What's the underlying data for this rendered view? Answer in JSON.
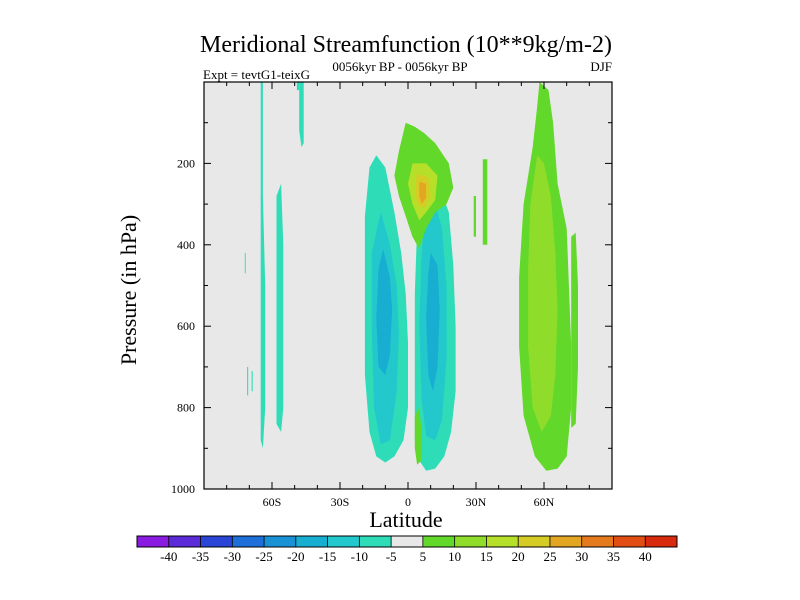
{
  "chart_data": {
    "type": "heatmap",
    "title": "Meridional Streamfunction (10**9kg/m-2)",
    "subtitle": "0056kyr BP - 0056kyr BP",
    "left_annotation": "Expt = tevtG1-teixG",
    "right_annotation": "DJF",
    "xlabel": "Latitude",
    "ylabel": "Pressure (in hPa)",
    "xlim": [
      -90,
      90
    ],
    "ylim": [
      0,
      1000
    ],
    "x_ticks": [
      {
        "value": -60,
        "label": "60S"
      },
      {
        "value": -30,
        "label": "30S"
      },
      {
        "value": 0,
        "label": "0"
      },
      {
        "value": 30,
        "label": "30N"
      },
      {
        "value": 60,
        "label": "60N"
      }
    ],
    "y_ticks": [
      {
        "value": 200,
        "label": "200"
      },
      {
        "value": 400,
        "label": "400"
      },
      {
        "value": 600,
        "label": "600"
      },
      {
        "value": 800,
        "label": "800"
      },
      {
        "value": 1000,
        "label": "1000"
      }
    ],
    "background_color": "#e8e8e8",
    "colorbar": {
      "levels": [
        "-40",
        "-35",
        "-30",
        "-25",
        "-20",
        "-15",
        "-10",
        "-5",
        "5",
        "10",
        "15",
        "20",
        "25",
        "30",
        "35",
        "40"
      ],
      "colors": [
        "#8a1be0",
        "#5a2bd6",
        "#2b46d6",
        "#1f6fd8",
        "#1892d4",
        "#17aed2",
        "#22c8cc",
        "#2fdcb8",
        "#e8e8e8",
        "#62d82a",
        "#8fdd2a",
        "#b6df2a",
        "#d6cc26",
        "#e3a622",
        "#e57a1c",
        "#e04e14",
        "#d82a0c"
      ]
    },
    "regions": [
      {
        "name": "sh-negative-cell-outer",
        "color": "#2fdcb8",
        "points": [
          [
            -14,
            180
          ],
          [
            -10,
            210
          ],
          [
            -6,
            320
          ],
          [
            -3,
            420
          ],
          [
            -1,
            520
          ],
          [
            0,
            640
          ],
          [
            0,
            800
          ],
          [
            -2,
            880
          ],
          [
            -6,
            920
          ],
          [
            -10,
            935
          ],
          [
            -14,
            920
          ],
          [
            -17,
            860
          ],
          [
            -19,
            720
          ],
          [
            -19,
            520
          ],
          [
            -19,
            330
          ],
          [
            -17,
            210
          ]
        ]
      },
      {
        "name": "sh-negative-cell-mid",
        "color": "#22c8cc",
        "points": [
          [
            -12,
            320
          ],
          [
            -8,
            400
          ],
          [
            -5,
            500
          ],
          [
            -4,
            620
          ],
          [
            -5,
            760
          ],
          [
            -8,
            880
          ],
          [
            -12,
            890
          ],
          [
            -15,
            800
          ],
          [
            -16,
            600
          ],
          [
            -16,
            420
          ]
        ]
      },
      {
        "name": "sh-negative-cell-core",
        "color": "#17aed2",
        "points": [
          [
            -11,
            410
          ],
          [
            -8,
            480
          ],
          [
            -7,
            560
          ],
          [
            -8,
            670
          ],
          [
            -10,
            720
          ],
          [
            -13,
            700
          ],
          [
            -14,
            580
          ],
          [
            -13,
            460
          ]
        ]
      },
      {
        "name": "nh-negative-cell-outer",
        "color": "#2fdcb8",
        "points": [
          [
            6,
            250
          ],
          [
            10,
            240
          ],
          [
            14,
            260
          ],
          [
            18,
            320
          ],
          [
            20,
            450
          ],
          [
            21,
            600
          ],
          [
            21,
            760
          ],
          [
            19,
            860
          ],
          [
            16,
            920
          ],
          [
            12,
            950
          ],
          [
            8,
            955
          ],
          [
            5,
            930
          ],
          [
            3,
            880
          ],
          [
            3,
            700
          ],
          [
            3,
            520
          ],
          [
            4,
            360
          ]
        ]
      },
      {
        "name": "nh-negative-cell-mid",
        "color": "#22c8cc",
        "points": [
          [
            8,
            300
          ],
          [
            12,
            300
          ],
          [
            15,
            360
          ],
          [
            17,
            500
          ],
          [
            17,
            680
          ],
          [
            15,
            830
          ],
          [
            12,
            880
          ],
          [
            8,
            870
          ],
          [
            6,
            780
          ],
          [
            5,
            600
          ],
          [
            6,
            420
          ]
        ]
      },
      {
        "name": "nh-negative-cell-core",
        "color": "#17aed2",
        "points": [
          [
            10,
            420
          ],
          [
            13,
            450
          ],
          [
            14,
            560
          ],
          [
            13,
            700
          ],
          [
            11,
            760
          ],
          [
            9,
            720
          ],
          [
            8,
            580
          ],
          [
            9,
            470
          ]
        ]
      },
      {
        "name": "upper-positive-cell",
        "color": "#62d82a",
        "points": [
          [
            -1,
            100
          ],
          [
            3,
            110
          ],
          [
            7,
            125
          ],
          [
            12,
            150
          ],
          [
            18,
            200
          ],
          [
            20,
            260
          ],
          [
            17,
            300
          ],
          [
            12,
            320
          ],
          [
            8,
            360
          ],
          [
            6,
            390
          ],
          [
            5,
            410
          ],
          [
            2,
            380
          ],
          [
            -1,
            330
          ],
          [
            -4,
            280
          ],
          [
            -6,
            230
          ],
          [
            -4,
            170
          ]
        ]
      },
      {
        "name": "upper-positive-mid",
        "color": "#b6df2a",
        "points": [
          [
            2,
            200
          ],
          [
            8,
            200
          ],
          [
            13,
            230
          ],
          [
            12,
            290
          ],
          [
            8,
            320
          ],
          [
            5,
            340
          ],
          [
            2,
            300
          ],
          [
            0,
            250
          ]
        ]
      },
      {
        "name": "upper-positive-core",
        "color": "#d6cc26",
        "points": [
          [
            4,
            225
          ],
          [
            9,
            235
          ],
          [
            10,
            280
          ],
          [
            7,
            310
          ],
          [
            4,
            300
          ],
          [
            3,
            265
          ]
        ]
      },
      {
        "name": "upper-positive-peak",
        "color": "#e3a622",
        "points": [
          [
            5,
            245
          ],
          [
            8,
            250
          ],
          [
            8,
            285
          ],
          [
            6,
            300
          ],
          [
            5,
            280
          ]
        ]
      },
      {
        "name": "nh-sfc-positive-small",
        "color": "#62d82a",
        "points": [
          [
            3,
            820
          ],
          [
            5,
            800
          ],
          [
            6,
            860
          ],
          [
            6,
            930
          ],
          [
            4,
            940
          ],
          [
            3,
            900
          ]
        ]
      },
      {
        "name": "nh-thin-streak-1",
        "color": "#62d82a",
        "points": [
          [
            33,
            190
          ],
          [
            35,
            190
          ],
          [
            35,
            400
          ],
          [
            33,
            400
          ]
        ]
      },
      {
        "name": "nh-thin-streak-2",
        "color": "#62d82a",
        "points": [
          [
            29,
            280
          ],
          [
            30,
            280
          ],
          [
            30,
            380
          ],
          [
            29,
            380
          ]
        ]
      },
      {
        "name": "nh-midlat-positive-outer",
        "color": "#62d82a",
        "points": [
          [
            58,
            0
          ],
          [
            62,
            20
          ],
          [
            64,
            100
          ],
          [
            66,
            250
          ],
          [
            70,
            360
          ],
          [
            71,
            500
          ],
          [
            72,
            650
          ],
          [
            72,
            800
          ],
          [
            70,
            920
          ],
          [
            66,
            950
          ],
          [
            61,
            955
          ],
          [
            56,
            920
          ],
          [
            51,
            820
          ],
          [
            49,
            650
          ],
          [
            49,
            480
          ],
          [
            51,
            300
          ],
          [
            55,
            160
          ],
          [
            57,
            60
          ]
        ]
      },
      {
        "name": "nh-midlat-positive-core",
        "color": "#8fdd2a",
        "points": [
          [
            57,
            180
          ],
          [
            60,
            200
          ],
          [
            63,
            280
          ],
          [
            65,
            420
          ],
          [
            66,
            560
          ],
          [
            65,
            720
          ],
          [
            63,
            820
          ],
          [
            59,
            860
          ],
          [
            55,
            800
          ],
          [
            53,
            650
          ],
          [
            53,
            460
          ],
          [
            54,
            300
          ]
        ]
      },
      {
        "name": "nh-highlat-streak",
        "color": "#62d82a",
        "points": [
          [
            72,
            380
          ],
          [
            74,
            370
          ],
          [
            75,
            500
          ],
          [
            75,
            700
          ],
          [
            74,
            840
          ],
          [
            72,
            850
          ],
          [
            72,
            700
          ]
        ]
      },
      {
        "name": "sh-highlat-streak-a",
        "color": "#2fdcb8",
        "points": [
          [
            -65,
            0
          ],
          [
            -64,
            0
          ],
          [
            -64,
            280
          ],
          [
            -63,
            500
          ],
          [
            -63,
            800
          ],
          [
            -64,
            900
          ],
          [
            -65,
            880
          ],
          [
            -65,
            600
          ],
          [
            -65,
            300
          ]
        ]
      },
      {
        "name": "sh-highlat-streak-b",
        "color": "#2fdcb8",
        "points": [
          [
            -58,
            280
          ],
          [
            -56,
            250
          ],
          [
            -55,
            400
          ],
          [
            -55,
            600
          ],
          [
            -55,
            800
          ],
          [
            -56,
            860
          ],
          [
            -58,
            840
          ],
          [
            -58,
            600
          ],
          [
            -58,
            420
          ]
        ]
      },
      {
        "name": "sh-highlat-blob-c",
        "color": "#2fdcb8",
        "points": [
          [
            -48,
            0
          ],
          [
            -46,
            0
          ],
          [
            -46,
            150
          ],
          [
            -47,
            160
          ],
          [
            -48,
            120
          ]
        ]
      },
      {
        "name": "sh-highlat-blob-d",
        "color": "#2fdcb8",
        "points": [
          [
            -49,
            0
          ],
          [
            -48,
            0
          ],
          [
            -48,
            20
          ],
          [
            -49,
            20
          ]
        ]
      },
      {
        "name": "sh-highlat-dash-e",
        "color": "#2fdcb8",
        "points": [
          [
            -71,
            700
          ],
          [
            -70.5,
            700
          ],
          [
            -70.5,
            770
          ],
          [
            -71,
            770
          ]
        ]
      },
      {
        "name": "sh-highlat-dash-f",
        "color": "#2fdcb8",
        "points": [
          [
            -69,
            710
          ],
          [
            -68.5,
            710
          ],
          [
            -68.5,
            760
          ],
          [
            -69,
            760
          ]
        ]
      },
      {
        "name": "sh-highlat-dash-g",
        "color": "#2fdcb8",
        "points": [
          [
            -72,
            420
          ],
          [
            -71.6,
            420
          ],
          [
            -71.6,
            470
          ],
          [
            -72,
            470
          ]
        ]
      }
    ]
  }
}
